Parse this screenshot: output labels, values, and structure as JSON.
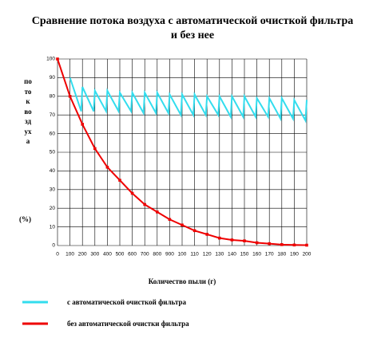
{
  "chart_data": {
    "type": "line",
    "title": "Сравнение потока воздуха с автоматической очисткой фильтра",
    "title_line2": "и без нее",
    "ylabel": "поток воздуха",
    "yunit": "(%)",
    "xlabel": "Количество пыли (г)",
    "xlim": [
      0,
      2000
    ],
    "ylim": [
      0,
      100
    ],
    "yticks": [
      0,
      10,
      20,
      30,
      40,
      50,
      60,
      70,
      80,
      90,
      100
    ],
    "xticks": [
      0,
      100,
      200,
      300,
      400,
      500,
      600,
      700,
      800,
      900,
      {
        "value": 1000,
        "label": "100"
      },
      {
        "value": 1100,
        "label": "110"
      },
      {
        "value": 1200,
        "label": "120"
      },
      {
        "value": 1300,
        "label": "130"
      },
      {
        "value": 1400,
        "label": "140"
      },
      {
        "value": 1500,
        "label": "150"
      },
      {
        "value": 1600,
        "label": "160"
      },
      {
        "value": 1700,
        "label": "170"
      },
      {
        "value": 1800,
        "label": "180"
      },
      {
        "value": 1900,
        "label": "190"
      },
      {
        "value": 2000,
        "label": "200"
      }
    ],
    "grid": true,
    "series": [
      {
        "name": "с автоматической очисткой фильтра",
        "color": "#33ddee",
        "markers": false,
        "x": [
          100,
          190,
          200,
          290,
          300,
          390,
          400,
          490,
          500,
          590,
          600,
          690,
          700,
          790,
          800,
          890,
          900,
          990,
          1000,
          1090,
          1100,
          1190,
          1200,
          1290,
          1300,
          1390,
          1400,
          1490,
          1500,
          1590,
          1600,
          1690,
          1700,
          1790,
          1800,
          1890,
          1900,
          1990,
          2000
        ],
        "values": [
          90,
          72,
          85,
          72,
          83,
          72,
          83,
          72,
          82,
          72,
          82,
          71,
          82,
          71,
          82,
          71,
          81,
          70,
          81,
          70,
          81,
          70,
          80,
          70,
          80,
          69,
          80,
          69,
          80,
          69,
          79,
          69,
          79,
          68,
          79,
          68,
          78,
          67,
          78
        ]
      },
      {
        "name": "без автоматической очистки фильтра",
        "color": "#ee0000",
        "markers": true,
        "x": [
          0,
          100,
          200,
          300,
          400,
          500,
          600,
          700,
          800,
          900,
          1000,
          1100,
          1200,
          1300,
          1400,
          1500,
          1600,
          1700,
          1800,
          1900,
          2000
        ],
        "values": [
          100,
          80,
          65,
          52,
          42,
          35,
          28,
          22,
          18,
          14,
          11,
          8,
          6,
          4,
          3,
          2.5,
          1.5,
          1,
          0.5,
          0.3,
          0.2
        ]
      }
    ]
  }
}
